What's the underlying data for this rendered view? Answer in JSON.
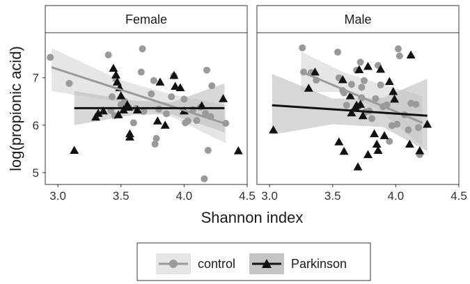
{
  "chart_data": {
    "type": "scatter",
    "xlabel": "Shannon index",
    "ylabel": "log(propionic acid)",
    "xlim": [
      2.9,
      4.5
    ],
    "ylim": [
      4.75,
      7.95
    ],
    "x_ticks": [
      "3.0",
      "3.5",
      "4.0",
      "4.5"
    ],
    "y_ticks": [
      "5",
      "6",
      "7"
    ],
    "legend_position": "bottom",
    "legend": {
      "control_label": "control",
      "parkinson_label": "Parkinson"
    },
    "colors": {
      "control": "#9a9a9a",
      "parkinson": "#111111",
      "band_control": "#d9d9d9",
      "band_parkinson": "#bdbdbd",
      "panel_bg": "#ffffff"
    },
    "panels": [
      {
        "strip": "Female",
        "series": [
          {
            "key": "control",
            "name": "control",
            "marker": "circle",
            "fit": {
              "x": [
                2.95,
                4.33
              ],
              "y": [
                7.22,
                6.03
              ]
            },
            "band": {
              "x": [
                2.95,
                3.5,
                3.9,
                4.33
              ],
              "upper": [
                7.62,
                6.95,
                6.65,
                6.42
              ],
              "lower": [
                6.72,
                6.48,
                6.18,
                5.62
              ]
            },
            "points": [
              [
                2.94,
                7.43
              ],
              [
                3.09,
                6.88
              ],
              [
                3.4,
                7.48
              ],
              [
                3.46,
                6.97
              ],
              [
                3.43,
                6.6
              ],
              [
                3.42,
                6.31
              ],
              [
                3.45,
                6.2
              ],
              [
                3.5,
                6.43
              ],
              [
                3.53,
                6.5
              ],
              [
                3.56,
                6.38
              ],
              [
                3.6,
                6.05
              ],
              [
                3.62,
                6.35
              ],
              [
                3.66,
                7.12
              ],
              [
                3.67,
                7.61
              ],
              [
                3.68,
                6.29
              ],
              [
                3.74,
                6.66
              ],
              [
                3.76,
                6.94
              ],
              [
                3.78,
                5.72
              ],
              [
                3.77,
                5.6
              ],
              [
                3.8,
                6.34
              ],
              [
                3.86,
                6.24
              ],
              [
                3.9,
                6.6
              ],
              [
                3.92,
                7.04
              ],
              [
                4.0,
                6.55
              ],
              [
                4.01,
                6.05
              ],
              [
                4.03,
                6.09
              ],
              [
                4.07,
                6.33
              ],
              [
                4.1,
                6.1
              ],
              [
                4.13,
                6.38
              ],
              [
                4.16,
                4.87
              ],
              [
                4.17,
                6.25
              ],
              [
                4.18,
                7.16
              ],
              [
                4.19,
                5.47
              ],
              [
                4.21,
                6.18
              ],
              [
                4.22,
                6.83
              ],
              [
                4.33,
                6.04
              ]
            ]
          },
          {
            "key": "parkinson",
            "name": "Parkinson",
            "marker": "triangle",
            "fit": {
              "x": [
                3.13,
                4.32
              ],
              "y": [
                6.36,
                6.36
              ]
            },
            "band": {
              "x": [
                3.13,
                3.6,
                3.9,
                4.32
              ],
              "upper": [
                6.72,
                6.52,
                6.48,
                6.88
              ],
              "lower": [
                6.0,
                6.22,
                6.23,
                5.85
              ]
            },
            "points": [
              [
                3.13,
                5.47
              ],
              [
                3.3,
                6.17
              ],
              [
                3.32,
                6.25
              ],
              [
                3.36,
                6.3
              ],
              [
                3.44,
                7.2
              ],
              [
                3.46,
                7.06
              ],
              [
                3.47,
                6.91
              ],
              [
                3.48,
                6.22
              ],
              [
                3.49,
                6.79
              ],
              [
                3.5,
                6.62
              ],
              [
                3.52,
                6.32
              ],
              [
                3.55,
                6.43
              ],
              [
                3.56,
                6.38
              ],
              [
                3.57,
                5.82
              ],
              [
                3.57,
                5.75
              ],
              [
                3.63,
                6.32
              ],
              [
                3.79,
                6.09
              ],
              [
                3.81,
                6.91
              ],
              [
                3.85,
                6.0
              ],
              [
                3.92,
                7.05
              ],
              [
                3.93,
                6.82
              ],
              [
                3.97,
                6.79
              ],
              [
                4.0,
                6.3
              ],
              [
                4.14,
                6.41
              ],
              [
                4.31,
                6.56
              ],
              [
                4.43,
                5.46
              ]
            ]
          }
        ]
      },
      {
        "strip": "Male",
        "series": [
          {
            "key": "control",
            "name": "control",
            "marker": "circle",
            "fit": {
              "x": [
                3.25,
                4.21
              ],
              "y": [
                7.13,
                6.05
              ]
            },
            "band": {
              "x": [
                3.25,
                3.6,
                3.9,
                4.21
              ],
              "upper": [
                7.55,
                7.1,
                6.85,
                6.62
              ],
              "lower": [
                6.7,
                6.7,
                6.25,
                5.55
              ]
            },
            "points": [
              [
                3.26,
                7.63
              ],
              [
                3.27,
                7.12
              ],
              [
                3.33,
                7.11
              ],
              [
                3.37,
                6.95
              ],
              [
                3.54,
                7.54
              ],
              [
                3.55,
                7.0
              ],
              [
                3.58,
                6.73
              ],
              [
                3.59,
                6.68
              ],
              [
                3.61,
                6.42
              ],
              [
                3.65,
                6.86
              ],
              [
                3.69,
                7.16
              ],
              [
                3.72,
                7.33
              ],
              [
                3.73,
                6.58
              ],
              [
                3.73,
                6.8
              ],
              [
                3.75,
                6.94
              ],
              [
                3.76,
                6.28
              ],
              [
                3.79,
                6.3
              ],
              [
                3.81,
                6.14
              ],
              [
                3.84,
                6.56
              ],
              [
                3.86,
                7.26
              ],
              [
                3.88,
                6.85
              ],
              [
                3.9,
                6.39
              ],
              [
                3.93,
                6.43
              ],
              [
                3.95,
                5.66
              ],
              [
                3.97,
                5.99
              ],
              [
                4.01,
                6.02
              ],
              [
                4.02,
                7.61
              ],
              [
                4.03,
                7.46
              ],
              [
                4.07,
                6.22
              ],
              [
                4.1,
                5.9
              ],
              [
                4.12,
                6.46
              ],
              [
                4.16,
                6.44
              ],
              [
                4.18,
                5.95
              ],
              [
                4.19,
                5.38
              ]
            ]
          },
          {
            "key": "parkinson",
            "name": "Parkinson",
            "marker": "triangle",
            "fit": {
              "x": [
                3.02,
                4.25
              ],
              "y": [
                6.42,
                6.2
              ]
            },
            "band": {
              "x": [
                3.02,
                3.5,
                3.9,
                4.25
              ],
              "upper": [
                7.08,
                6.56,
                6.58,
                6.98
              ],
              "lower": [
                5.8,
                6.02,
                5.96,
                5.45
              ]
            },
            "points": [
              [
                3.03,
                5.9
              ],
              [
                3.31,
                6.78
              ],
              [
                3.36,
                7.12
              ],
              [
                3.55,
                5.65
              ],
              [
                3.58,
                6.96
              ],
              [
                3.59,
                5.45
              ],
              [
                3.64,
                6.62
              ],
              [
                3.65,
                6.26
              ],
              [
                3.68,
                6.38
              ],
              [
                3.69,
                6.42
              ],
              [
                3.7,
                5.12
              ],
              [
                3.71,
                7.17
              ],
              [
                3.72,
                6.44
              ],
              [
                3.74,
                6.2
              ],
              [
                3.78,
                5.38
              ],
              [
                3.78,
                7.24
              ],
              [
                3.83,
                5.82
              ],
              [
                3.85,
                5.6
              ],
              [
                3.86,
                5.47
              ],
              [
                3.88,
                7.18
              ],
              [
                3.91,
                5.78
              ],
              [
                3.95,
                6.92
              ],
              [
                3.98,
                6.71
              ],
              [
                3.99,
                6.55
              ],
              [
                4.11,
                5.6
              ],
              [
                4.12,
                7.48
              ],
              [
                4.19,
                5.46
              ],
              [
                4.25,
                6.02
              ]
            ]
          }
        ]
      }
    ]
  }
}
